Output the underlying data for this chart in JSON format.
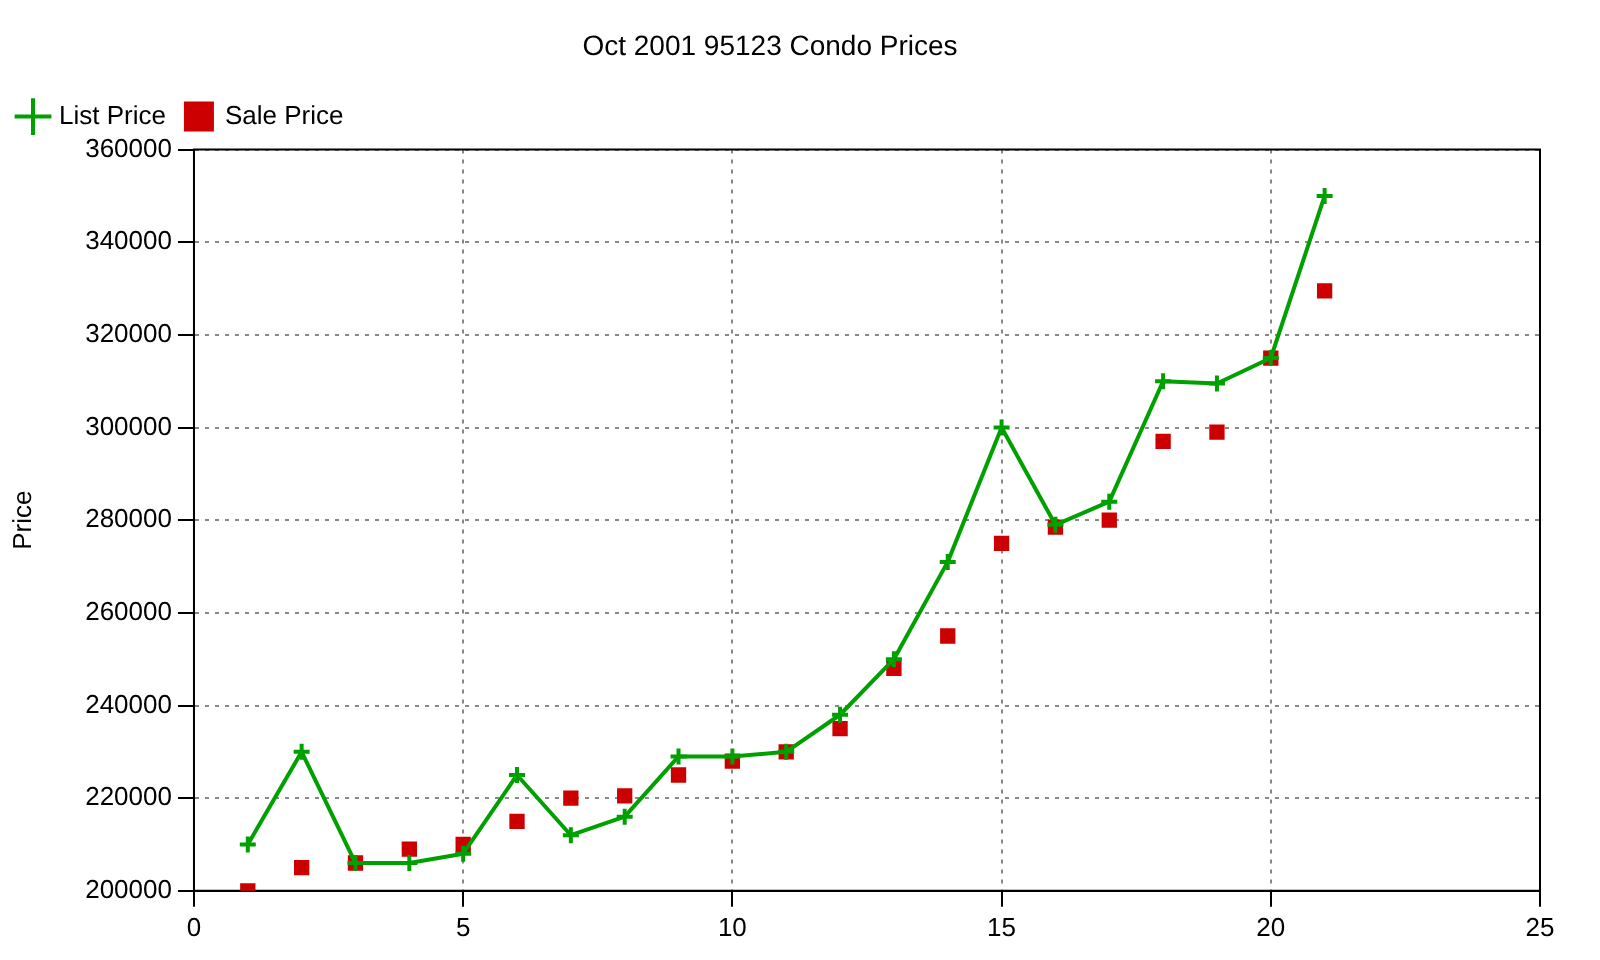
{
  "chart_data": {
    "type": "line",
    "title": "Oct 2001 95123 Condo Prices",
    "ylabel": "Price",
    "x": [
      1,
      2,
      3,
      4,
      5,
      6,
      7,
      8,
      9,
      10,
      11,
      12,
      13,
      14,
      15,
      16,
      17,
      18,
      19,
      20,
      21
    ],
    "series": [
      {
        "name": "List Price",
        "type": "line",
        "color": "#00a000",
        "marker": "cross",
        "values": [
          210000,
          230000,
          206000,
          206000,
          208000,
          225000,
          212000,
          216000,
          229000,
          229000,
          230000,
          238000,
          250000,
          271000,
          300000,
          279000,
          284000,
          310000,
          309500,
          315000,
          350000
        ]
      },
      {
        "name": "Sale Price",
        "type": "scatter",
        "color": "#cc0000",
        "marker": "square",
        "values": [
          200000,
          205000,
          206000,
          209000,
          210000,
          215000,
          220000,
          220500,
          225000,
          228000,
          230000,
          235000,
          248000,
          255000,
          275000,
          278500,
          280000,
          297000,
          299000,
          315000,
          329500
        ]
      }
    ],
    "xlim": [
      0,
      25
    ],
    "xticks": [
      0,
      5,
      10,
      15,
      20,
      25
    ],
    "ylim": [
      200000,
      360000
    ],
    "yticks": [
      200000,
      220000,
      240000,
      260000,
      280000,
      300000,
      320000,
      340000,
      360000
    ],
    "grid": true,
    "legend": "top left",
    "line_style": "solid"
  }
}
